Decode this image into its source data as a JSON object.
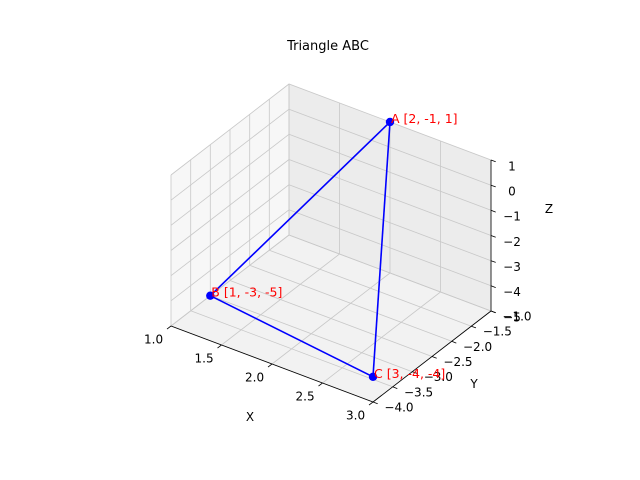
{
  "chart_data": {
    "type": "scatter",
    "title": "Triangle ABC",
    "xlabel": "X",
    "ylabel": "Y",
    "zlabel": "Z",
    "xlim": [
      1.0,
      3.0
    ],
    "ylim": [
      -4.0,
      -1.0
    ],
    "zlim": [
      -5,
      1
    ],
    "x_ticks": [
      1.0,
      1.5,
      2.0,
      2.5,
      3.0
    ],
    "x_tick_labels": [
      "1.0",
      "1.5",
      "2.0",
      "2.5",
      "3.0"
    ],
    "y_ticks": [
      -4.0,
      -3.5,
      -3.0,
      -2.5,
      -2.0,
      -1.5,
      -1.0
    ],
    "y_tick_labels": [
      "−4.0",
      "−3.5",
      "−3.0",
      "−2.5",
      "−2.0",
      "−1.5",
      "−1.0"
    ],
    "z_ticks": [
      -5,
      -4,
      -3,
      -2,
      -1,
      0,
      1
    ],
    "z_tick_labels": [
      "−5",
      "−4",
      "−3",
      "−2",
      "−1",
      "0",
      "1"
    ],
    "grid": true,
    "points": [
      {
        "name": "A",
        "label": "A [2, -1, 1]",
        "x": 2,
        "y": -1,
        "z": 1
      },
      {
        "name": "B",
        "label": "B [1, -3, -5]",
        "x": 1,
        "y": -3,
        "z": -5
      },
      {
        "name": "C",
        "label": "C [3, -4, -4]",
        "x": 3,
        "y": -4,
        "z": -4
      }
    ],
    "edges": [
      [
        "A",
        "B"
      ],
      [
        "B",
        "C"
      ],
      [
        "C",
        "A"
      ]
    ],
    "line_color": "#0000ff",
    "marker_color": "#0000ff",
    "label_color": "#ff0000"
  }
}
